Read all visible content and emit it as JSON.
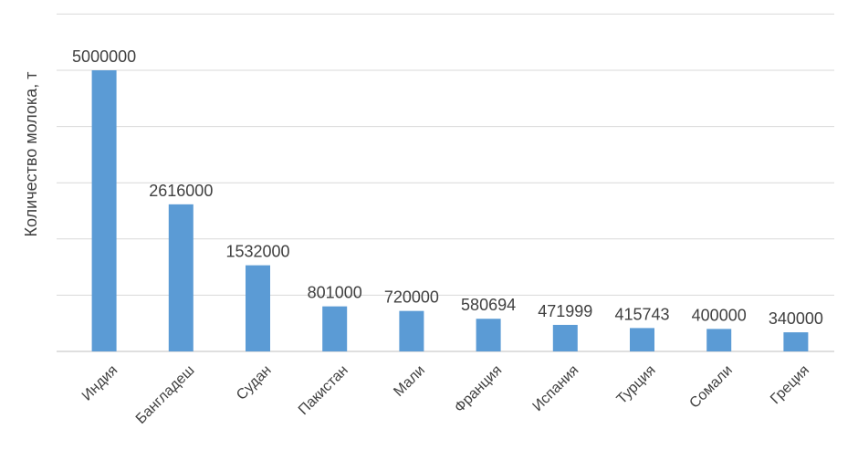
{
  "chart_data": {
    "type": "bar",
    "title": "",
    "xlabel": "",
    "ylabel": "Количество  молока, т",
    "categories": [
      "Индия",
      "Бангладеш",
      "Судан",
      "Пакистан",
      "Мали",
      "Франция",
      "Испания",
      "Турция",
      "Сомали",
      "Греция"
    ],
    "values": [
      5000000,
      2616000,
      1532000,
      801000,
      720000,
      580694,
      471999,
      415743,
      400000,
      340000
    ],
    "data_labels": [
      "5000000",
      "2616000",
      "1532000",
      "801000",
      "720000",
      "580694",
      "471999",
      "415743",
      "400000",
      "340000"
    ],
    "y_axis_tick_labels_visible": false,
    "grid": true,
    "legend": "none",
    "colors": {
      "bar": "#5b9bd5",
      "grid": "#d9d9d9",
      "text": "#404040"
    }
  }
}
